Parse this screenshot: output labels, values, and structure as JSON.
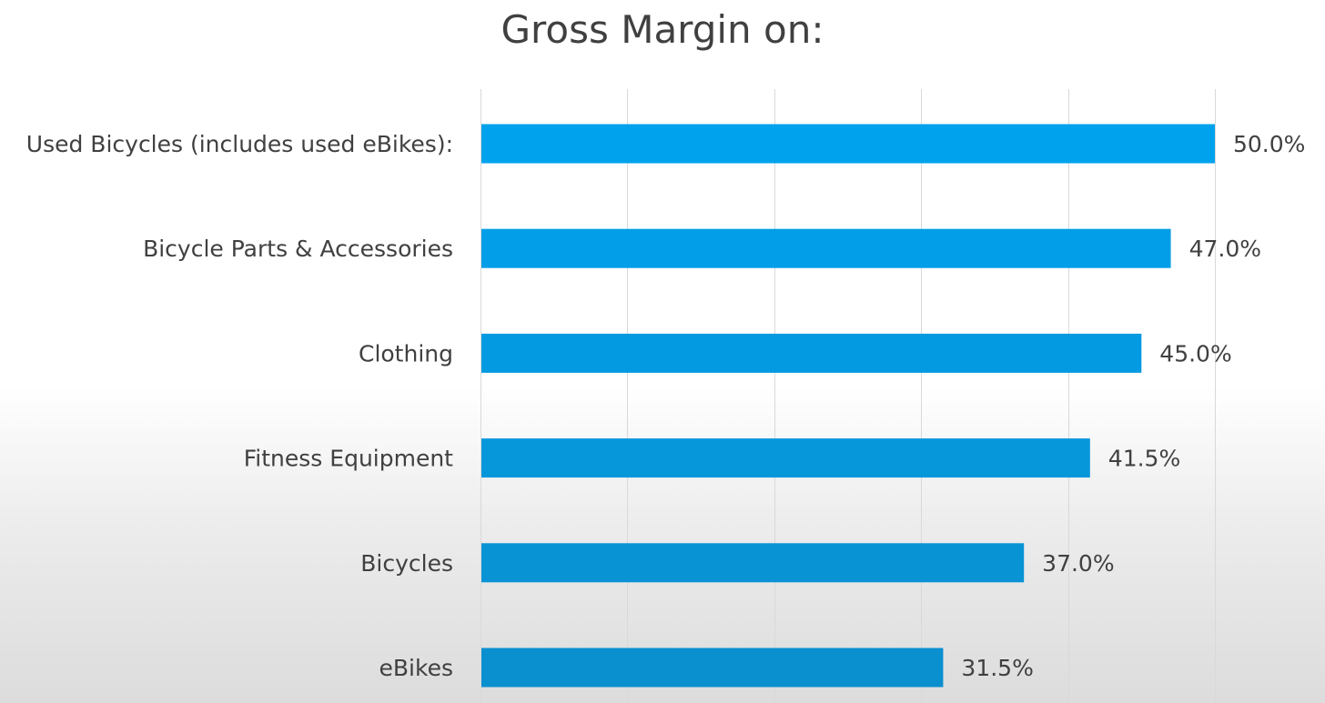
{
  "chart_data": {
    "type": "bar",
    "orientation": "horizontal",
    "title": "Gross Margin on:",
    "categories": [
      "Used Bicycles (includes used eBikes):",
      "Bicycle Parts & Accessories",
      "Clothing",
      "Fitness Equipment",
      "Bicycles",
      "eBikes"
    ],
    "values": [
      50.0,
      47.0,
      45.0,
      41.5,
      37.0,
      31.5
    ],
    "value_labels": [
      "50.0%",
      "47.0%",
      "45.0%",
      "41.5%",
      "37.0%",
      "31.5%"
    ],
    "xlim": [
      0,
      50
    ],
    "x_gridlines": [
      0,
      10,
      20,
      30,
      40,
      50
    ],
    "grid": true,
    "legend": "none",
    "xlabel": "",
    "ylabel": "",
    "colors": {
      "bar_top": "#00a2ed",
      "bar_bottom": "#0a8fcf",
      "gridline": "#d9d9d9",
      "text": "#404040"
    }
  }
}
